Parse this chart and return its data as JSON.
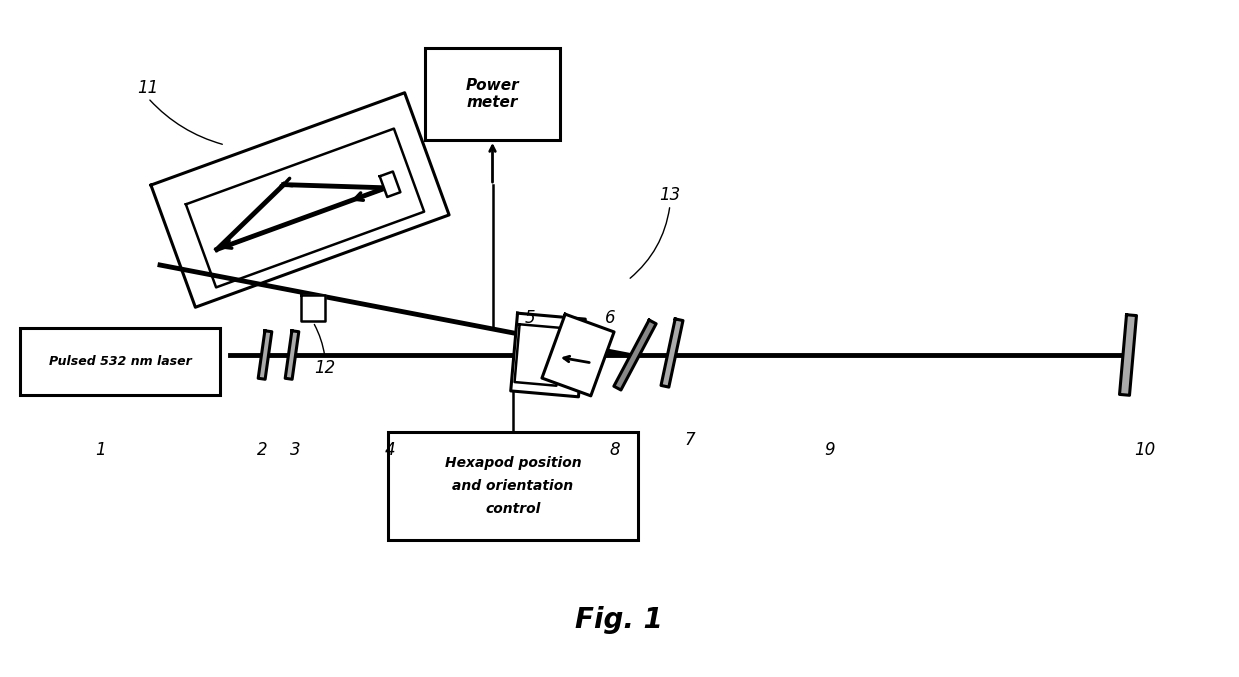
{
  "fig_width": 12.39,
  "fig_height": 6.77,
  "bg_color": "#ffffff",
  "line_color": "#000000",
  "title": "Fig. 1",
  "laser_text": "Pulsed 532 nm laser",
  "power_meter_text": "Power\nmeter",
  "hexapod_text": "Hexapod position\nand orientation\ncontrol"
}
